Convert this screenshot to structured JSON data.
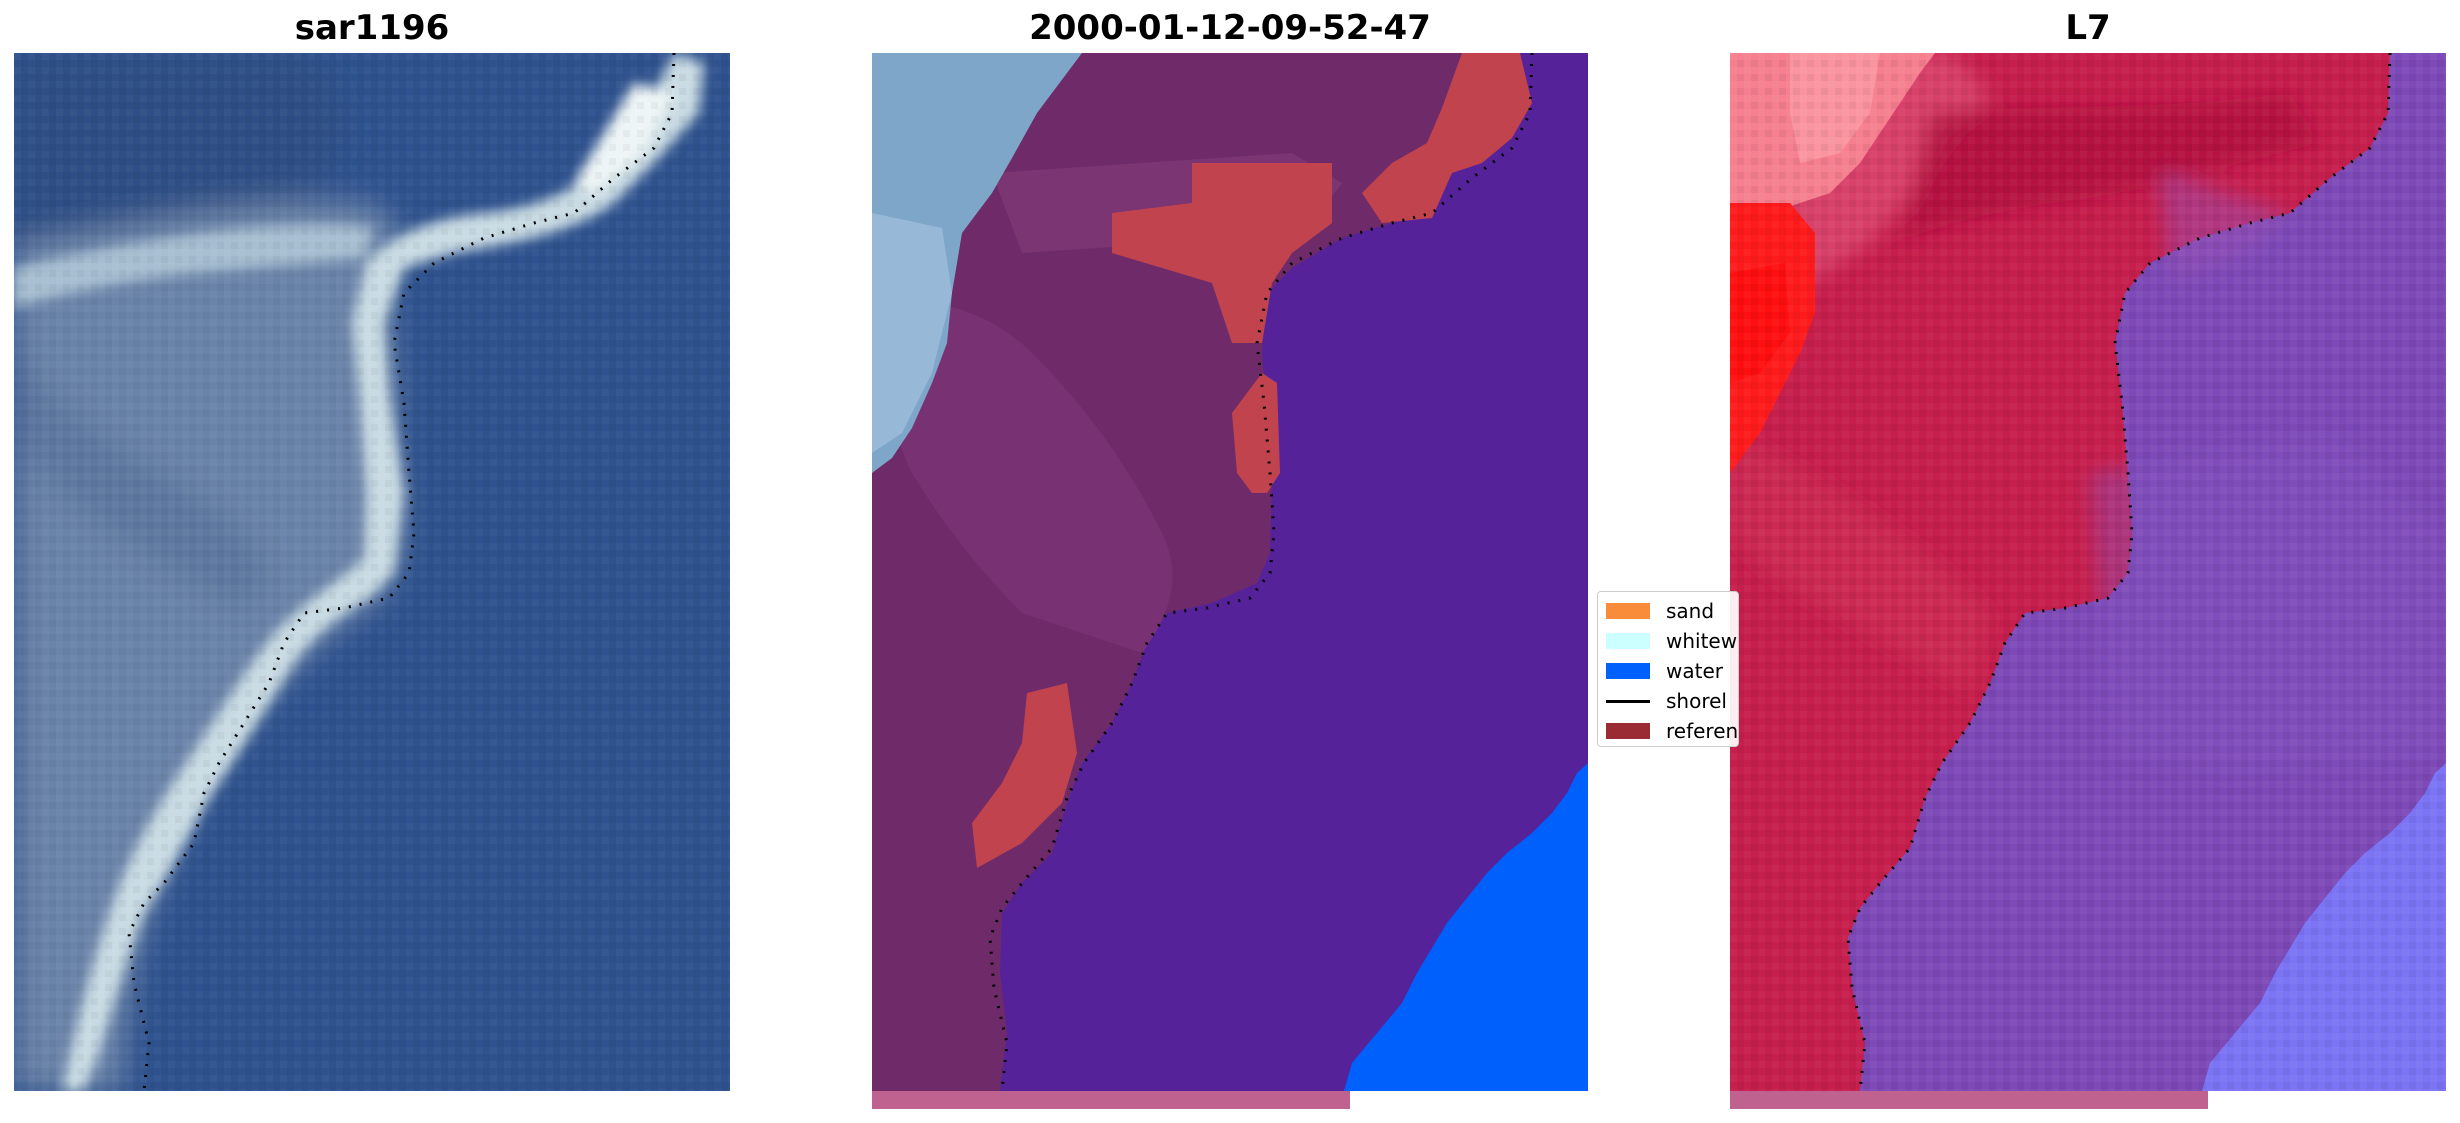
{
  "panels": [
    {
      "title": "sar1196"
    },
    {
      "title": "2000-01-12-09-52-47"
    },
    {
      "title": "L7"
    }
  ],
  "legend": {
    "items": [
      {
        "label": "sand",
        "color": "#f98c3b",
        "kind": "patch"
      },
      {
        "label": "whitew",
        "color": "#ccffff",
        "kind": "patch"
      },
      {
        "label": "water",
        "color": "#0060fc",
        "kind": "patch"
      },
      {
        "label": "shorel",
        "color": "#000000",
        "kind": "line"
      },
      {
        "label": "referen",
        "color": "#9a2a34",
        "kind": "patch"
      }
    ]
  },
  "colors": {
    "rgb_sea": "#2f528e",
    "rgb_land": "#6a83a8",
    "rgb_foam": "#d6e6ea",
    "class_land": "#6f2a6a",
    "class_water_overlay": "#55229a",
    "class_reference": "#c1434e",
    "class_water": "#0060fc",
    "class_whitewater": "#7ea6c8",
    "l7_land": "#c71f4d",
    "l7_water": "#7d4ab8",
    "l7_bright": "#ff1b1b",
    "l7_pink": "#f6808f",
    "l7_lightwater": "#7b74f4",
    "strip": "#c0628f"
  }
}
